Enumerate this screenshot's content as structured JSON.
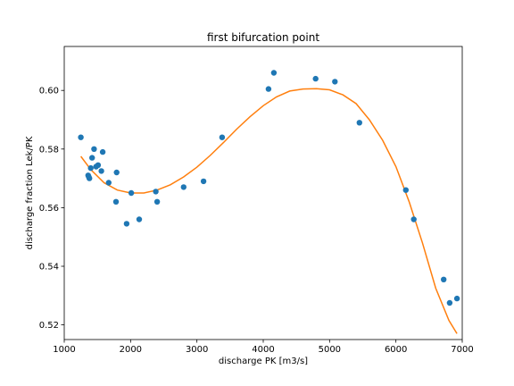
{
  "chart_data": {
    "type": "scatter",
    "title": "first bifurcation point",
    "xlabel": "discharge PK [m3/s]",
    "ylabel": "discharge fraction Lek/PK",
    "xlim": [
      1000,
      7000
    ],
    "ylim": [
      0.515,
      0.615
    ],
    "xticks": [
      1000,
      2000,
      3000,
      4000,
      5000,
      6000,
      7000
    ],
    "yticks": [
      0.52,
      0.54,
      0.56,
      0.58,
      0.6
    ],
    "ytick_labels": [
      "0.52",
      "0.54",
      "0.56",
      "0.58",
      "0.60"
    ],
    "grid": false,
    "colors": {
      "points": "#1f77b4",
      "fit": "#ff7f0e"
    },
    "series": [
      {
        "kind": "points",
        "x": [
          1250,
          1360,
          1370,
          1380,
          1400,
          1420,
          1450,
          1480,
          1510,
          1560,
          1580,
          1670,
          1780,
          1790,
          1940,
          2010,
          2130,
          2380,
          2400,
          2800,
          3100,
          3380,
          4080,
          4160,
          4790,
          5080,
          5450,
          6150,
          6270,
          6720,
          6810,
          6920
        ],
        "y": [
          0.584,
          0.571,
          0.5705,
          0.57,
          0.5735,
          0.577,
          0.58,
          0.574,
          0.5745,
          0.5725,
          0.579,
          0.5685,
          0.562,
          0.572,
          0.5545,
          0.565,
          0.556,
          0.5655,
          0.562,
          0.567,
          0.569,
          0.584,
          0.6005,
          0.606,
          0.604,
          0.603,
          0.589,
          0.566,
          0.556,
          0.5355,
          0.5275,
          0.529
        ]
      },
      {
        "kind": "fit-line",
        "x": [
          1250,
          1400,
          1600,
          1800,
          2000,
          2200,
          2400,
          2600,
          2800,
          3000,
          3200,
          3400,
          3600,
          3800,
          4000,
          4200,
          4400,
          4600,
          4800,
          5000,
          5200,
          5400,
          5600,
          5800,
          6000,
          6200,
          6400,
          6600,
          6800,
          6920
        ],
        "y": [
          0.5775,
          0.573,
          0.5685,
          0.566,
          0.565,
          0.565,
          0.566,
          0.5678,
          0.5705,
          0.5738,
          0.5778,
          0.5822,
          0.5868,
          0.591,
          0.5948,
          0.5978,
          0.5998,
          0.6005,
          0.6006,
          0.6002,
          0.5985,
          0.5955,
          0.59,
          0.583,
          0.574,
          0.562,
          0.548,
          0.5325,
          0.5215,
          0.517
        ]
      }
    ]
  }
}
